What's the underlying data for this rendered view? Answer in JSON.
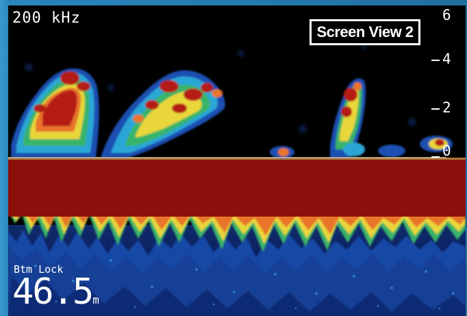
{
  "frequency": "200 kHz",
  "badge": "Screen View 2",
  "scale": {
    "label_6": "6",
    "label_4": "4",
    "label_2": "2",
    "label_0": "0"
  },
  "bottom": {
    "mode_label": "Btm Lock",
    "depth_value": "46.5",
    "depth_unit": "m"
  },
  "colors": {
    "bottom_fill": "#8b0f0a",
    "frame": "#2b86bd",
    "text": "#ffffff"
  }
}
